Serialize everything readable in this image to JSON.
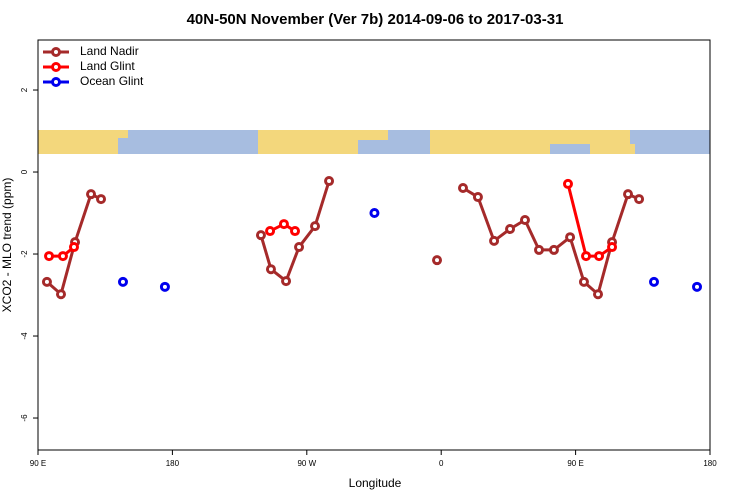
{
  "chart_data": {
    "type": "line",
    "title": "40N-50N November (Ver 7b)   2014-09-06 to 2017-03-31",
    "x_label": "Longitude",
    "y_label": "XCO2 - MLO trend (ppm)",
    "xlim": [
      90,
      540
    ],
    "ylim": [
      -6.78,
      3.22
    ],
    "xticks": [
      {
        "value": 90,
        "label": "90 E"
      },
      180,
      {
        "value": 270,
        "label": "90 W"
      },
      {
        "value": 360,
        "label": "0"
      },
      {
        "value": 450,
        "label": "90 E"
      },
      {
        "value": 540,
        "label": "180"
      }
    ],
    "yticks": [
      -6,
      -4,
      -2,
      0,
      2
    ],
    "legend": "top-left",
    "series": [
      {
        "name": "Land Nadir",
        "color": "#a52a2a",
        "line": true,
        "x": [
          96.0,
          105.4,
          114.8,
          125.5,
          132.2,
          null,
          239.3,
          246.0,
          256.1,
          264.8,
          275.5,
          284.9,
          null,
          357.2,
          null,
          374.6,
          384.6,
          395.4,
          406.1,
          416.1,
          425.5,
          435.5,
          446.3,
          455.6,
          465.0,
          474.4,
          485.1,
          492.5
        ],
        "values": [
          -2.68,
          -2.98,
          -1.71,
          -0.54,
          -0.66,
          null,
          -1.54,
          -2.37,
          -2.66,
          -1.83,
          -1.32,
          -0.22,
          null,
          -2.15,
          null,
          -0.39,
          -0.61,
          -1.68,
          -1.39,
          -1.17,
          -1.9,
          -1.9,
          -1.59,
          -2.68,
          -2.98,
          -1.71,
          -0.54,
          -0.66
        ]
      },
      {
        "name": "Land Glint",
        "color": "#ff0000",
        "line": true,
        "x": [
          97.4,
          106.7,
          114.1,
          null,
          245.4,
          254.7,
          262.1,
          null,
          444.9,
          457.0,
          465.7,
          474.4
        ],
        "values": [
          -2.05,
          -2.05,
          -1.83,
          null,
          -1.44,
          -1.27,
          -1.44,
          null,
          -0.29,
          -2.05,
          -2.05,
          -1.83
        ]
      },
      {
        "name": "Ocean Glint",
        "color": "#0000ee",
        "line": false,
        "x": [
          146.9,
          175.0,
          315.3,
          502.5,
          531.3
        ],
        "values": [
          -2.68,
          -2.8,
          -1.0,
          -2.68,
          -2.8
        ]
      }
    ]
  }
}
